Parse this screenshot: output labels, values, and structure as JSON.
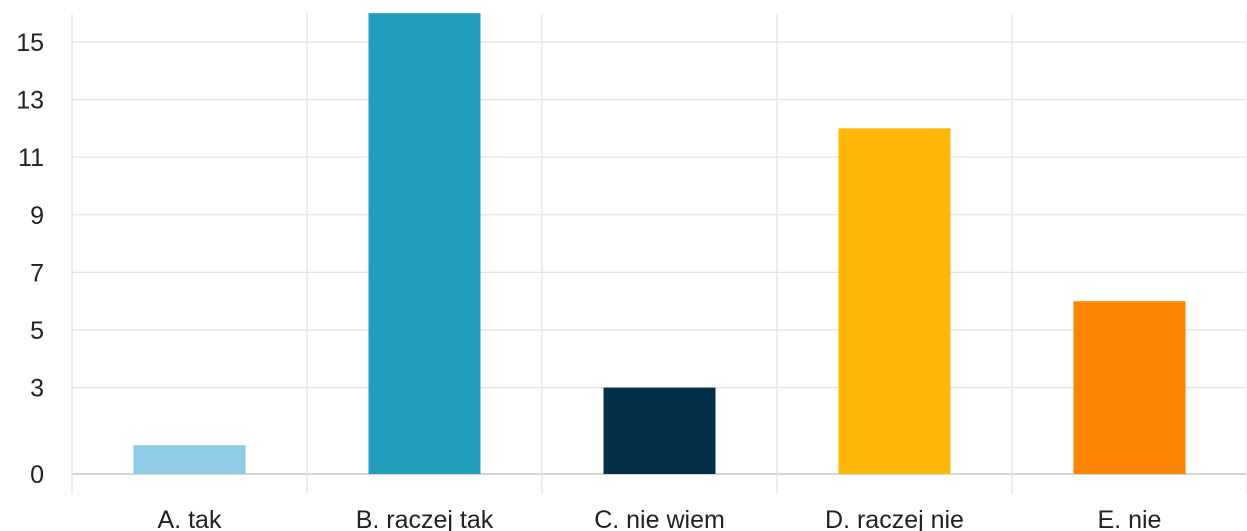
{
  "chart_data": {
    "type": "bar",
    "categories": [
      "A. tak",
      "B. raczej tak",
      "C. nie wiem",
      "D. raczej nie",
      "E. nie"
    ],
    "values": [
      1,
      16,
      3,
      12,
      6
    ],
    "colors": [
      "#8fcae6",
      "#229ebc",
      "#033048",
      "#ffb708",
      "#fb8500"
    ],
    "ylim": [
      0,
      16
    ],
    "yticks": [
      0,
      3,
      5,
      7,
      9,
      11,
      13,
      15
    ],
    "grid": true,
    "legend": "none"
  }
}
